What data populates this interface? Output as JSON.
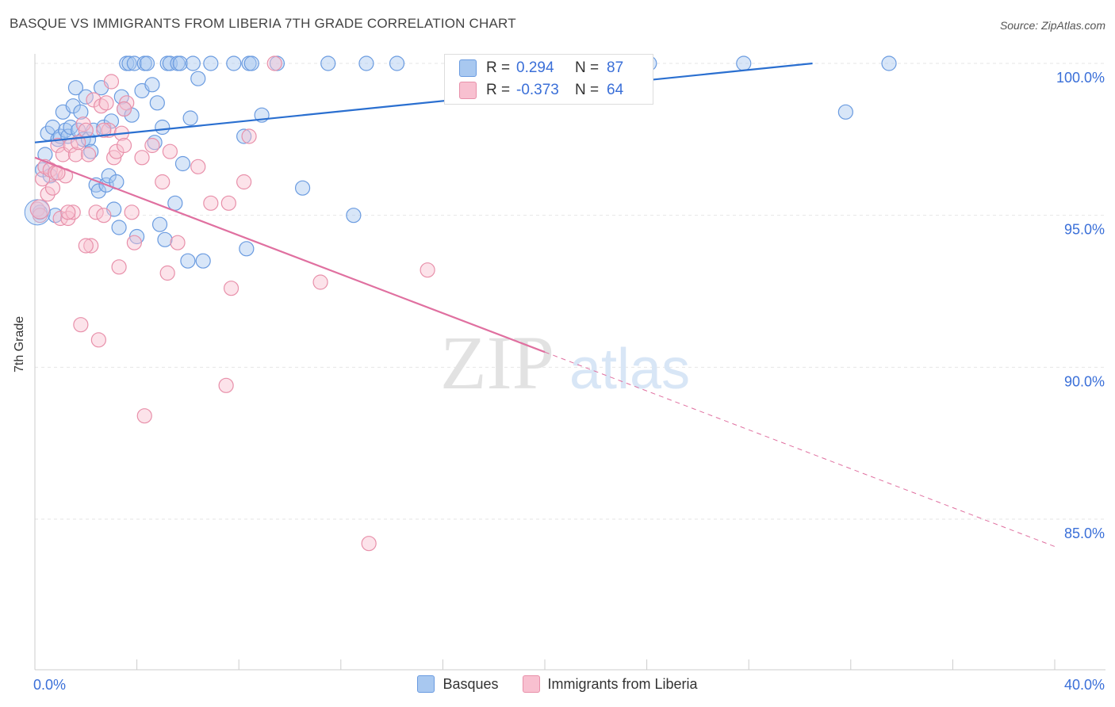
{
  "title": "BASQUE VS IMMIGRANTS FROM LIBERIA 7TH GRADE CORRELATION CHART",
  "source": "Source: ZipAtlas.com",
  "watermark": {
    "zip": "ZIP",
    "atlas": "atlas"
  },
  "legend": {
    "r_label": "R =",
    "n_label": "N =",
    "rows": [
      {
        "r": "0.294",
        "n": "87",
        "color": "#a8c8f0",
        "border": "#6a9be0"
      },
      {
        "r": "-0.373",
        "n": "64",
        "color": "#f8c0d0",
        "border": "#e890aa"
      }
    ]
  },
  "chart_data": {
    "type": "scatter",
    "title": "BASQUE VS IMMIGRANTS FROM LIBERIA 7TH GRADE CORRELATION CHART",
    "xlabel": "",
    "ylabel": "7th Grade",
    "xlim": [
      0,
      40
    ],
    "ylim": [
      80.5,
      100.8
    ],
    "x_ticks": [
      "0.0%",
      "40.0%"
    ],
    "y_ticks": [
      {
        "value": 100,
        "label": "100.0%"
      },
      {
        "value": 95,
        "label": "95.0%"
      },
      {
        "value": 90,
        "label": "90.0%"
      },
      {
        "value": 85,
        "label": "85.0%"
      }
    ],
    "grid": true,
    "legend_position": "top-center",
    "series": [
      {
        "name": "Basques",
        "color": "#6a9be0",
        "fill": "#a8c8f0",
        "line_color": "#2a6fd0",
        "trend": {
          "x0": 0,
          "y0": 97.4,
          "x1": 30.5,
          "y1": 100.0,
          "dashed_to": null
        },
        "points": [
          [
            0.2,
            95.1
          ],
          [
            0.3,
            96.5
          ],
          [
            0.4,
            97.0
          ],
          [
            0.5,
            97.7
          ],
          [
            0.6,
            96.3
          ],
          [
            0.7,
            97.9
          ],
          [
            0.8,
            95.0
          ],
          [
            0.9,
            97.5
          ],
          [
            1.0,
            97.6
          ],
          [
            1.1,
            98.4
          ],
          [
            1.2,
            97.8
          ],
          [
            1.3,
            97.6
          ],
          [
            1.4,
            97.9
          ],
          [
            1.5,
            98.6
          ],
          [
            1.6,
            99.2
          ],
          [
            1.7,
            97.8
          ],
          [
            1.8,
            98.4
          ],
          [
            1.9,
            97.5
          ],
          [
            2.0,
            98.9
          ],
          [
            2.1,
            97.5
          ],
          [
            2.2,
            97.1
          ],
          [
            2.3,
            97.8
          ],
          [
            2.4,
            96.0
          ],
          [
            2.5,
            95.8
          ],
          [
            2.6,
            99.2
          ],
          [
            2.7,
            97.9
          ],
          [
            2.8,
            96.0
          ],
          [
            2.9,
            96.3
          ],
          [
            3.0,
            98.1
          ],
          [
            3.1,
            95.2
          ],
          [
            3.2,
            96.1
          ],
          [
            3.3,
            94.6
          ],
          [
            3.4,
            98.9
          ],
          [
            3.5,
            98.5
          ],
          [
            3.6,
            100.0
          ],
          [
            3.7,
            100.0
          ],
          [
            3.8,
            98.3
          ],
          [
            3.9,
            100.0
          ],
          [
            4.0,
            94.3
          ],
          [
            4.2,
            99.1
          ],
          [
            4.3,
            100.0
          ],
          [
            4.4,
            100.0
          ],
          [
            4.6,
            99.3
          ],
          [
            4.7,
            97.4
          ],
          [
            4.8,
            98.7
          ],
          [
            4.9,
            94.7
          ],
          [
            5.0,
            97.9
          ],
          [
            5.1,
            94.2
          ],
          [
            5.2,
            100.0
          ],
          [
            5.3,
            100.0
          ],
          [
            5.5,
            95.4
          ],
          [
            5.6,
            100.0
          ],
          [
            5.7,
            100.0
          ],
          [
            5.8,
            96.7
          ],
          [
            6.0,
            93.5
          ],
          [
            6.1,
            98.2
          ],
          [
            6.2,
            100.0
          ],
          [
            6.4,
            99.5
          ],
          [
            6.6,
            93.5
          ],
          [
            6.9,
            100.0
          ],
          [
            7.8,
            100.0
          ],
          [
            8.2,
            97.6
          ],
          [
            8.3,
            93.9
          ],
          [
            8.4,
            100.0
          ],
          [
            8.5,
            100.0
          ],
          [
            8.9,
            98.3
          ],
          [
            9.5,
            100.0
          ],
          [
            10.5,
            95.9
          ],
          [
            11.5,
            100.0
          ],
          [
            12.5,
            95.0
          ],
          [
            13.0,
            100.0
          ],
          [
            14.2,
            100.0
          ],
          [
            19.6,
            100.0
          ],
          [
            24.1,
            100.0
          ],
          [
            27.8,
            100.0
          ],
          [
            31.8,
            98.4
          ],
          [
            33.5,
            100.0
          ]
        ]
      },
      {
        "name": "Immigrants from Liberia",
        "color": "#e890aa",
        "fill": "#f8c0d0",
        "line_color": "#e070a0",
        "trend": {
          "x0": 0,
          "y0": 96.9,
          "x1": 20.0,
          "y1": 90.5,
          "dashed_to": {
            "x": 40.0,
            "y": 84.1
          }
        },
        "points": [
          [
            0.1,
            95.2
          ],
          [
            0.2,
            95.0
          ],
          [
            0.3,
            96.2
          ],
          [
            0.4,
            96.6
          ],
          [
            0.5,
            95.7
          ],
          [
            0.6,
            96.5
          ],
          [
            0.7,
            95.9
          ],
          [
            0.8,
            96.4
          ],
          [
            0.9,
            97.3
          ],
          [
            1.0,
            94.9
          ],
          [
            1.1,
            97.0
          ],
          [
            1.2,
            96.3
          ],
          [
            1.3,
            94.9
          ],
          [
            1.4,
            97.3
          ],
          [
            1.5,
            95.1
          ],
          [
            1.6,
            97.0
          ],
          [
            1.7,
            97.4
          ],
          [
            1.8,
            91.4
          ],
          [
            1.9,
            98.0
          ],
          [
            2.0,
            97.8
          ],
          [
            2.1,
            97.0
          ],
          [
            2.2,
            94.0
          ],
          [
            2.3,
            98.8
          ],
          [
            2.4,
            95.1
          ],
          [
            2.5,
            90.9
          ],
          [
            2.6,
            98.6
          ],
          [
            2.7,
            95.0
          ],
          [
            2.8,
            98.7
          ],
          [
            2.9,
            97.8
          ],
          [
            3.0,
            99.4
          ],
          [
            3.1,
            96.9
          ],
          [
            3.2,
            97.1
          ],
          [
            3.3,
            93.3
          ],
          [
            3.4,
            97.7
          ],
          [
            3.5,
            97.3
          ],
          [
            3.6,
            98.7
          ],
          [
            3.8,
            95.1
          ],
          [
            3.9,
            94.1
          ],
          [
            4.2,
            96.9
          ],
          [
            4.3,
            88.4
          ],
          [
            4.6,
            97.3
          ],
          [
            5.0,
            96.1
          ],
          [
            5.2,
            93.1
          ],
          [
            5.3,
            97.1
          ],
          [
            5.6,
            94.1
          ],
          [
            6.4,
            96.6
          ],
          [
            6.9,
            95.4
          ],
          [
            7.5,
            89.4
          ],
          [
            7.6,
            95.4
          ],
          [
            7.7,
            92.6
          ],
          [
            8.2,
            96.1
          ],
          [
            8.4,
            97.6
          ],
          [
            9.4,
            100.0
          ],
          [
            11.2,
            92.8
          ],
          [
            13.1,
            84.2
          ],
          [
            15.4,
            93.2
          ],
          [
            2.0,
            94.0
          ],
          [
            1.3,
            95.1
          ],
          [
            0.9,
            96.4
          ],
          [
            2.7,
            97.8
          ],
          [
            3.5,
            98.5
          ]
        ]
      }
    ]
  }
}
